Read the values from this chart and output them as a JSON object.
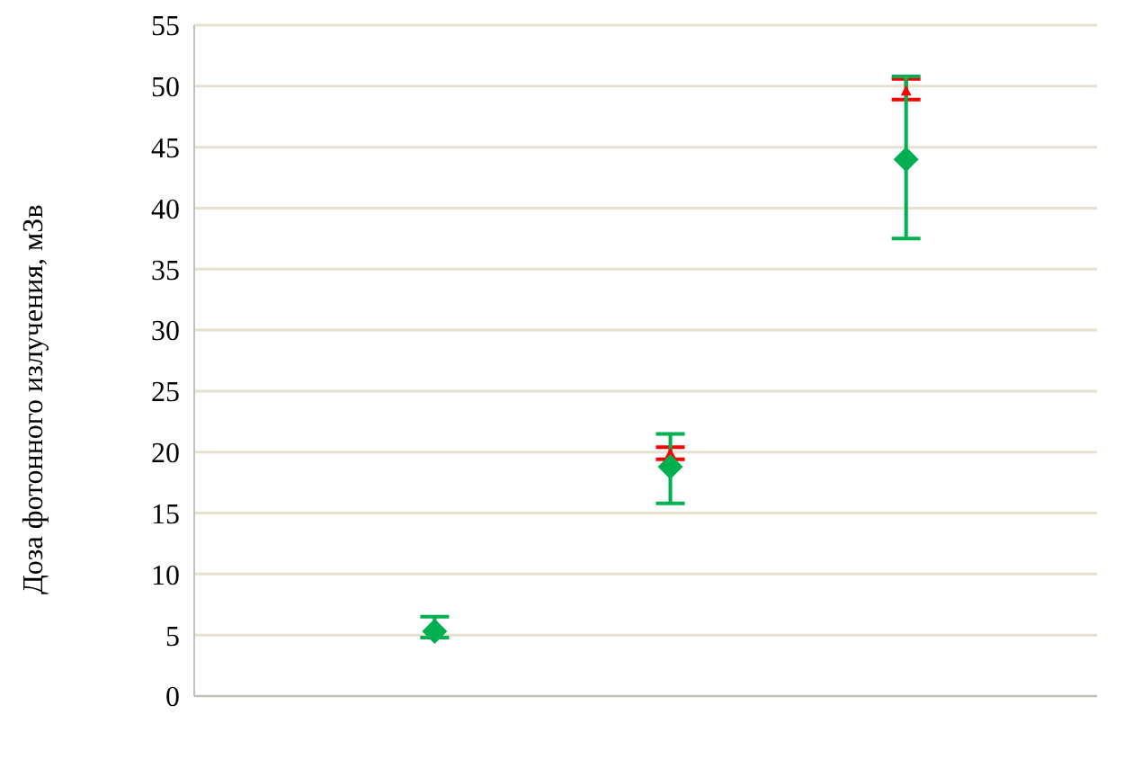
{
  "chart_data": {
    "type": "scatter",
    "ylabel": "Доза фотонного излучения, мЗв",
    "categories": [
      null,
      null,
      null
    ],
    "series": [
      {
        "color": "#ff0000",
        "marker": "triangle",
        "values": [
          null,
          19.9,
          49.6
        ],
        "errors": [
          null,
          [
            19.4,
            20.4
          ],
          [
            48.9,
            50.6
          ]
        ]
      },
      {
        "color": "#00b050",
        "marker": "diamond",
        "values": [
          5.3,
          18.8,
          44
        ],
        "errors": [
          [
            4.8,
            6.5
          ],
          [
            15.8,
            21.5
          ],
          [
            37.5,
            50.8
          ]
        ]
      }
    ],
    "ylim": [
      0,
      55
    ],
    "yticks": [
      0,
      5,
      10,
      15,
      20,
      25,
      30,
      35,
      40,
      45,
      50,
      55
    ],
    "grid": "y",
    "legend": false
  }
}
